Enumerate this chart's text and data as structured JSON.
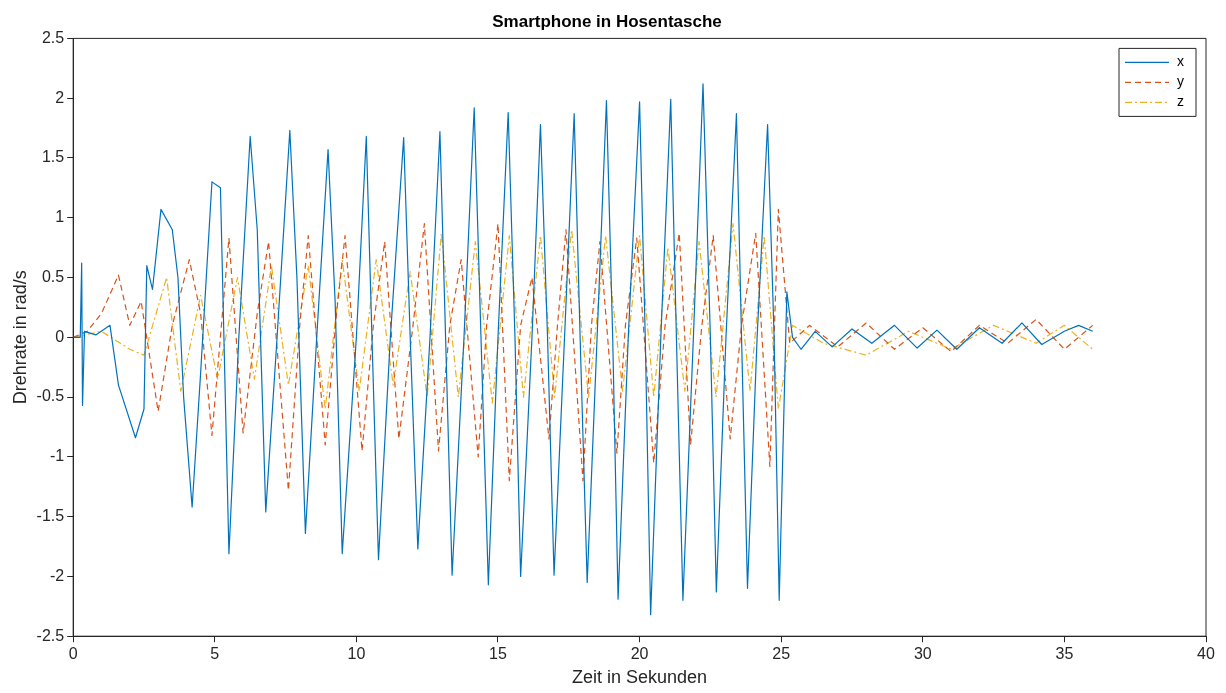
{
  "chart_data": {
    "type": "line",
    "title": "Smartphone in Hosentasche",
    "xlabel": "Zeit in Sekunden",
    "ylabel": "Drehrate in rad/s",
    "xlim": [
      0,
      40
    ],
    "xticks": [
      0,
      5,
      10,
      15,
      20,
      25,
      30,
      35,
      40
    ],
    "ylim": [
      -2.5,
      2.5
    ],
    "yticks": [
      -2.5,
      -2,
      -1.5,
      -1,
      -0.5,
      0,
      0.5,
      1,
      1.5,
      2,
      2.5
    ],
    "grid": false,
    "legend": "top right",
    "marker": "none",
    "series": [
      {
        "name": "x",
        "color": "#0072bd",
        "line_style": "solid",
        "x": [
          0,
          0.25,
          0.3,
          0.33,
          0.4,
          0.8,
          1.3,
          1.6,
          2.2,
          2.5,
          2.6,
          2.8,
          3.1,
          3.5,
          3.7,
          3.9,
          4.2,
          4.5,
          4.9,
          5.2,
          5.5,
          5.85,
          6.25,
          6.5,
          6.8,
          7.2,
          7.65,
          7.9,
          8.2,
          8.6,
          9.0,
          9.25,
          9.5,
          10.0,
          10.35,
          10.55,
          10.78,
          11.2,
          11.67,
          11.9,
          12.17,
          12.6,
          12.95,
          13.15,
          13.38,
          13.8,
          14.16,
          14.4,
          14.66,
          15.0,
          15.36,
          15.6,
          15.8,
          16.2,
          16.5,
          16.75,
          16.98,
          17.35,
          17.69,
          17.9,
          18.15,
          18.5,
          18.83,
          19.05,
          19.24,
          19.6,
          20.0,
          20.2,
          20.39,
          20.75,
          21.1,
          21.3,
          21.53,
          21.9,
          22.24,
          22.5,
          22.71,
          23.05,
          23.42,
          23.6,
          23.81,
          24.15,
          24.52,
          24.75,
          24.93,
          25.2,
          25.4,
          25.7,
          26.2,
          26.8,
          27.5,
          28.2,
          29,
          29.8,
          30.5,
          31.2,
          32,
          32.8,
          33.5,
          34.2,
          35,
          35.5,
          36
        ],
        "values": [
          0,
          0,
          0.62,
          -0.57,
          0.05,
          0.02,
          0.1,
          -0.4,
          -0.84,
          -0.6,
          0.6,
          0.4,
          1.07,
          0.9,
          0.5,
          -0.5,
          -1.42,
          -0.3,
          1.3,
          1.25,
          -1.81,
          0,
          1.68,
          0.9,
          -1.46,
          0,
          1.73,
          0.5,
          -1.64,
          0,
          1.57,
          0.3,
          -1.81,
          0,
          1.68,
          0,
          -1.86,
          0,
          1.67,
          0,
          -1.77,
          0,
          1.72,
          0,
          -1.99,
          0,
          1.92,
          0,
          -2.07,
          0,
          1.88,
          0,
          -2.0,
          0,
          1.78,
          0,
          -1.99,
          0,
          1.87,
          0,
          -2.05,
          0,
          1.98,
          0,
          -2.19,
          0,
          1.97,
          0,
          -2.32,
          0,
          1.99,
          0,
          -2.2,
          0,
          2.12,
          0,
          -2.13,
          0,
          1.87,
          0,
          -2.1,
          0,
          1.78,
          0,
          -2.2,
          0.38,
          0,
          -0.1,
          0.05,
          -0.08,
          0.07,
          -0.05,
          0.1,
          -0.09,
          0.06,
          -0.1,
          0.08,
          -0.05,
          0.12,
          -0.06,
          0.05,
          0.1,
          0.05
        ]
      },
      {
        "name": "y",
        "color": "#d95319",
        "line_style": "dashed",
        "x": [
          0,
          0.5,
          1.0,
          1.6,
          2.0,
          2.4,
          3.0,
          3.5,
          4.1,
          4.5,
          4.9,
          5.5,
          6.0,
          6.5,
          6.9,
          7.6,
          8.0,
          8.3,
          8.9,
          9.3,
          9.6,
          10.2,
          10.6,
          11.0,
          11.5,
          12.0,
          12.4,
          12.9,
          13.3,
          13.7,
          14.3,
          14.6,
          15.0,
          15.4,
          15.8,
          16.2,
          16.8,
          17.1,
          17.4,
          18.0,
          18.3,
          18.6,
          19.2,
          19.5,
          19.9,
          20.5,
          20.9,
          21.4,
          21.8,
          22.2,
          22.6,
          23.2,
          23.6,
          24.1,
          24.6,
          24.9,
          25.3,
          26,
          27,
          28,
          29,
          30,
          31,
          32,
          33,
          34,
          35,
          36
        ],
        "values": [
          0,
          0.05,
          0.2,
          0.52,
          0.1,
          0.3,
          -0.62,
          0.1,
          0.65,
          0.2,
          -0.82,
          0.83,
          -0.8,
          0.2,
          0.8,
          -1.28,
          0.1,
          0.85,
          -0.9,
          0.2,
          0.85,
          -0.95,
          0.1,
          0.8,
          -0.85,
          0.1,
          0.95,
          -0.95,
          0.1,
          0.65,
          -1.0,
          0.1,
          0.95,
          -1.2,
          0.1,
          0.5,
          -0.85,
          0.1,
          0.9,
          -1.2,
          0.1,
          0.8,
          -0.97,
          0.1,
          0.83,
          -1.05,
          0.1,
          0.87,
          -0.9,
          0.1,
          0.85,
          -0.85,
          0.1,
          0.87,
          -1.08,
          1.07,
          -0.05,
          0.1,
          -0.08,
          0.12,
          -0.1,
          0.08,
          -0.12,
          0.1,
          -0.05,
          0.15,
          -0.1,
          0.1
        ]
      },
      {
        "name": "z",
        "color": "#edb120",
        "line_style": "dashdot",
        "x": [
          0,
          1,
          2,
          2.5,
          3.3,
          3.8,
          4.5,
          5.1,
          5.8,
          6.4,
          7.0,
          7.6,
          8.3,
          8.9,
          9.5,
          10.1,
          10.7,
          11.3,
          11.9,
          12.5,
          13.0,
          13.6,
          14.2,
          14.8,
          15.4,
          15.9,
          16.5,
          17.0,
          17.6,
          18.2,
          18.8,
          19.4,
          20.0,
          20.5,
          21.0,
          21.6,
          22.1,
          22.7,
          23.3,
          23.9,
          24.4,
          24.9,
          25.4,
          26.5,
          28,
          29.5,
          31,
          32.5,
          34,
          35,
          36
        ],
        "values": [
          0,
          0.05,
          -0.1,
          -0.15,
          0.5,
          -0.45,
          0.35,
          -0.35,
          0.5,
          -0.35,
          0.6,
          -0.4,
          0.6,
          -0.6,
          0.65,
          -0.45,
          0.65,
          -0.4,
          0.55,
          -0.5,
          0.87,
          -0.5,
          0.8,
          -0.55,
          0.85,
          -0.5,
          0.85,
          -0.5,
          0.9,
          -0.5,
          0.85,
          -0.45,
          0.85,
          -0.5,
          0.75,
          -0.45,
          0.8,
          -0.5,
          0.95,
          -0.45,
          0.85,
          -0.6,
          0.1,
          -0.05,
          -0.15,
          0.05,
          -0.1,
          0.1,
          -0.05,
          0.1,
          -0.1
        ]
      }
    ]
  }
}
